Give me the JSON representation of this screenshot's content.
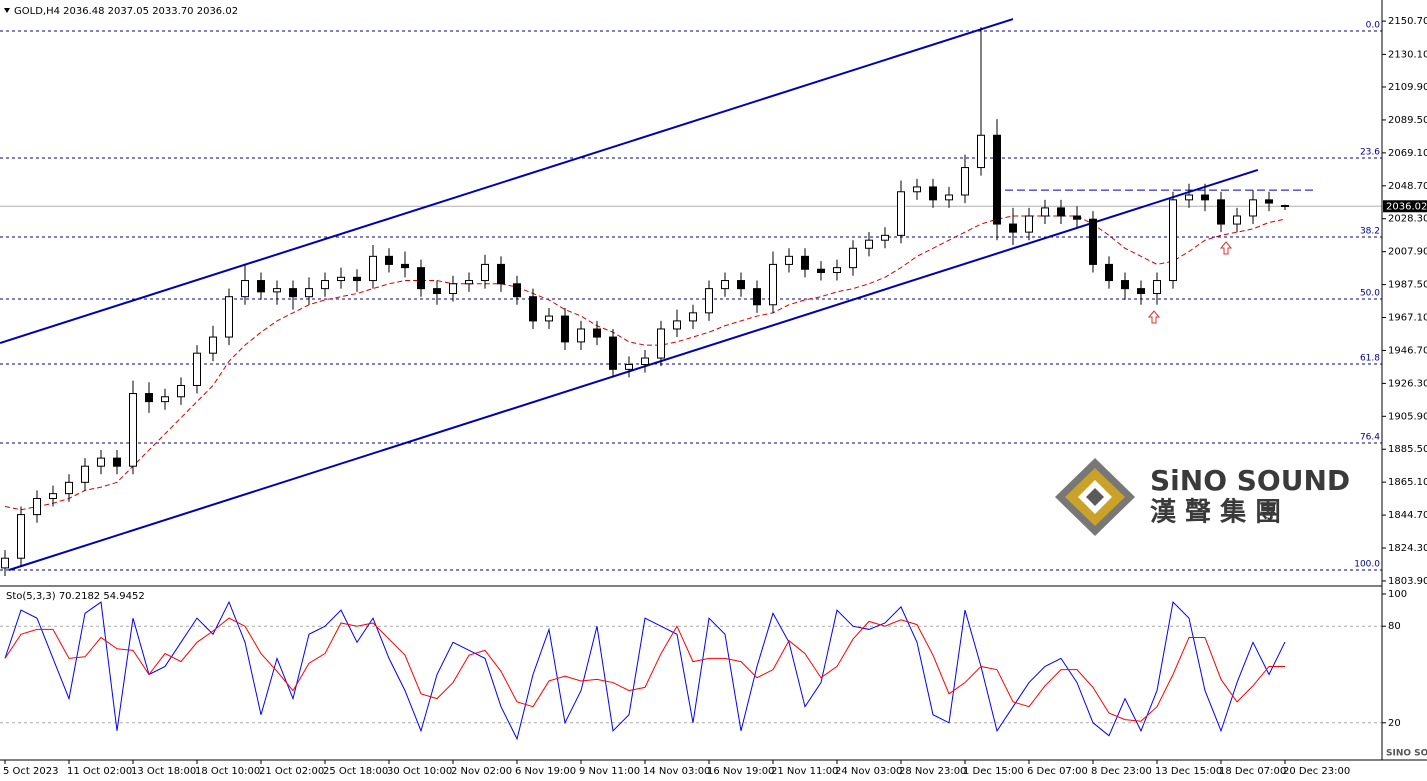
{
  "chart_data": [
    {
      "type": "candlestick",
      "title": "GOLD,H4  2036.48 2037.05 2033.70 2036.02",
      "categories": [
        "5 Oct 2023",
        null,
        null,
        null,
        "11 Oct 02:00",
        null,
        null,
        null,
        "13 Oct 18:00",
        null,
        null,
        null,
        "18 Oct 10:00",
        null,
        null,
        null,
        "21 Oct 02:00",
        null,
        null,
        null,
        "25 Oct 18:00",
        null,
        null,
        null,
        "30 Oct 10:00",
        null,
        null,
        null,
        "2 Nov 02:00",
        null,
        null,
        null,
        "6 Nov 19:00",
        null,
        null,
        null,
        "9 Nov 11:00",
        null,
        null,
        null,
        "14 Nov 03:00",
        null,
        null,
        null,
        "16 Nov 19:00",
        null,
        null,
        null,
        "21 Nov 11:00",
        null,
        null,
        null,
        "24 Nov 03:00",
        null,
        null,
        null,
        "28 Nov 23:00",
        null,
        null,
        null,
        "1 Dec 15:00",
        null,
        null,
        null,
        "6 Dec 07:00",
        null,
        null,
        null,
        "8 Dec 23:00",
        null,
        null,
        null,
        "13 Dec 15:00",
        null,
        null,
        null,
        "18 Dec 07:00",
        null,
        null,
        null,
        "20 Dec 23:00"
      ],
      "open": [
        1812,
        1818,
        1845,
        1855,
        1858,
        1865,
        1875,
        1880,
        1875,
        1920,
        1915,
        1918,
        1925,
        1945,
        1955,
        1980,
        1990,
        1983,
        1985,
        1980,
        1985,
        1990,
        1992,
        1990,
        2005,
        2000,
        1998,
        1985,
        1982,
        1988,
        1990,
        2000,
        1988,
        1980,
        1965,
        1968,
        1952,
        1960,
        1955,
        1935,
        1938,
        1942,
        1960,
        1965,
        1970,
        1985,
        1990,
        1985,
        1975,
        2000,
        2005,
        1997,
        1995,
        1998,
        2010,
        2015,
        2018,
        2045,
        2048,
        2040,
        2043,
        2060,
        2080,
        2025,
        2020,
        2030,
        2035,
        2030,
        2028,
        2000,
        1990,
        1985,
        1982,
        1990,
        2040,
        2043,
        2040,
        2025,
        2030,
        2040,
        2036.48
      ],
      "high": [
        1823,
        1850,
        1860,
        1863,
        1870,
        1880,
        1885,
        1885,
        1928,
        1927,
        1923,
        1930,
        1950,
        1962,
        1985,
        2000,
        1995,
        1990,
        1990,
        1992,
        1995,
        1998,
        1997,
        2012,
        2010,
        2008,
        2003,
        1990,
        1993,
        1995,
        2006,
        2005,
        1993,
        1985,
        1973,
        1973,
        1965,
        1965,
        1960,
        1943,
        1947,
        1965,
        1972,
        1975,
        1990,
        1995,
        1995,
        1990,
        2008,
        2010,
        2010,
        2002,
        2003,
        2015,
        2020,
        2023,
        2052,
        2053,
        2053,
        2048,
        2068,
        2147,
        2090,
        2035,
        2035,
        2040,
        2040,
        2036,
        2033,
        2005,
        1995,
        1990,
        1995,
        2045,
        2050,
        2050,
        2045,
        2035,
        2046,
        2045,
        2037.05
      ],
      "low": [
        1807,
        1813,
        1840,
        1850,
        1853,
        1860,
        1870,
        1870,
        1870,
        1908,
        1910,
        1913,
        1920,
        1940,
        1950,
        1975,
        1978,
        1975,
        1972,
        1975,
        1980,
        1985,
        1983,
        1985,
        1995,
        1992,
        1980,
        1975,
        1977,
        1983,
        1985,
        1983,
        1975,
        1960,
        1960,
        1947,
        1947,
        1950,
        1930,
        1930,
        1933,
        1937,
        1955,
        1960,
        1965,
        1980,
        1980,
        1970,
        1970,
        1995,
        1992,
        1990,
        1990,
        1993,
        2005,
        2010,
        2013,
        2040,
        2035,
        2035,
        2038,
        2055,
        2015,
        2012,
        2015,
        2025,
        2025,
        2023,
        1995,
        1985,
        1978,
        1975,
        1975,
        1985,
        2035,
        2033,
        2020,
        2020,
        2025,
        2033,
        2033.7
      ],
      "close": [
        1818,
        1845,
        1855,
        1858,
        1865,
        1875,
        1880,
        1875,
        1920,
        1915,
        1918,
        1925,
        1945,
        1955,
        1980,
        1990,
        1983,
        1985,
        1980,
        1985,
        1990,
        1992,
        1990,
        2005,
        2000,
        1998,
        1985,
        1982,
        1988,
        1990,
        2000,
        1988,
        1980,
        1965,
        1968,
        1952,
        1960,
        1955,
        1935,
        1938,
        1942,
        1960,
        1965,
        1970,
        1985,
        1990,
        1985,
        1975,
        2000,
        2005,
        1997,
        1995,
        1998,
        2010,
        2015,
        2018,
        2045,
        2048,
        2040,
        2043,
        2060,
        2080,
        2025,
        2020,
        2030,
        2035,
        2030,
        2028,
        2000,
        1990,
        1985,
        1982,
        1990,
        2040,
        2043,
        2040,
        2025,
        2030,
        2040,
        2038,
        2036.02
      ],
      "ylim": [
        1801.4,
        2163.8
      ],
      "yticks": [
        {
          "value": 2150.7,
          "label": "2150.70"
        },
        {
          "value": 2130.1,
          "label": "2130.10"
        },
        {
          "value": 2109.9,
          "label": "2109.90"
        },
        {
          "value": 2089.5,
          "label": "2089.50"
        },
        {
          "value": 2069.1,
          "label": "2069.10"
        },
        {
          "value": 2048.7,
          "label": "2048.70"
        },
        {
          "value": 2028.3,
          "label": "2028.30"
        },
        {
          "value": 2007.9,
          "label": "2007.90"
        },
        {
          "value": 1987.5,
          "label": "1987.50"
        },
        {
          "value": 1967.1,
          "label": "1967.10"
        },
        {
          "value": 1946.7,
          "label": "1946.70"
        },
        {
          "value": 1926.3,
          "label": "1926.30"
        },
        {
          "value": 1905.9,
          "label": "1905.90"
        },
        {
          "value": 1885.5,
          "label": "1885.50"
        },
        {
          "value": 1865.1,
          "label": "1865.10"
        },
        {
          "value": 1844.7,
          "label": "1844.70"
        },
        {
          "value": 1824.3,
          "label": "1824.30"
        },
        {
          "value": 1803.9,
          "label": "1803.90"
        }
      ],
      "current_price": {
        "value": 2036.02,
        "label": "2036.02"
      },
      "fib_levels": [
        {
          "label": "0.0",
          "value": 2144.6
        },
        {
          "label": "23.6",
          "value": 2065.9
        },
        {
          "label": "38.2",
          "value": 2017.0
        },
        {
          "label": "50.0",
          "value": 1978.6
        },
        {
          "label": "61.8",
          "value": 1938.3
        },
        {
          "label": "76.4",
          "value": 1889.4
        },
        {
          "label": "100.0",
          "value": 1810.7
        }
      ],
      "moving_average": {
        "color": "#d40000",
        "values": [
          1850,
          1848,
          1850,
          1852,
          1855,
          1860,
          1862,
          1865,
          1875,
          1885,
          1895,
          1905,
          1915,
          1925,
          1940,
          1950,
          1958,
          1965,
          1970,
          1975,
          1978,
          1980,
          1982,
          1985,
          1988,
          1990,
          1990,
          1990,
          1988,
          1988,
          1988,
          1988,
          1986,
          1982,
          1978,
          1972,
          1968,
          1962,
          1958,
          1952,
          1950,
          1950,
          1952,
          1955,
          1958,
          1962,
          1965,
          1968,
          1970,
          1975,
          1978,
          1980,
          1983,
          1985,
          1988,
          1992,
          1998,
          2005,
          2010,
          2015,
          2020,
          2025,
          2028,
          2030,
          2030,
          2030,
          2030,
          2030,
          2025,
          2018,
          2010,
          2005,
          2000,
          2002,
          2008,
          2015,
          2018,
          2020,
          2022,
          2026,
          2028
        ]
      },
      "trendlines": [
        {
          "x": [
            -0.31,
            63
          ],
          "y": [
            1951.3,
            2152.0
          ],
          "color": "#0000b4",
          "dashed": false
        },
        {
          "x": [
            0.25,
            78.3
          ],
          "y": [
            1810.7,
            2058.5
          ],
          "color": "#0000b4",
          "dashed": false
        },
        {
          "x": [
            61.75,
            81.75
          ],
          "y": [
            2046,
            2046
          ],
          "color": "#0000b4",
          "dashed": true
        }
      ]
    },
    {
      "type": "line",
      "title": "Sto(5,3,3) 70.2182 54.9452",
      "ylim": [
        0,
        100
      ],
      "yticks": [
        20,
        80,
        100
      ],
      "series": [
        {
          "color": "#0000ff",
          "values": [
            60,
            90,
            85,
            60,
            35,
            88,
            95,
            15,
            85,
            50,
            55,
            70,
            85,
            75,
            95,
            70,
            25,
            60,
            35,
            75,
            80,
            90,
            70,
            85,
            60,
            40,
            15,
            50,
            70,
            65,
            60,
            30,
            10,
            50,
            78,
            20,
            40,
            80,
            15,
            25,
            85,
            80,
            75,
            20,
            85,
            75,
            15,
            55,
            88,
            70,
            30,
            45,
            90,
            80,
            78,
            82,
            92,
            70,
            25,
            20,
            90,
            55,
            15,
            30,
            45,
            55,
            60,
            45,
            20,
            12,
            35,
            15,
            40,
            95,
            85,
            40,
            15,
            45,
            70,
            50,
            70.2182
          ]
        },
        {
          "color": "#ff0000",
          "values": [
            60,
            75,
            78,
            78,
            60,
            61,
            73,
            66,
            65,
            50,
            63,
            58,
            70,
            77,
            85,
            80,
            63,
            52,
            40,
            57,
            63,
            82,
            80,
            82,
            72,
            62,
            38,
            35,
            45,
            62,
            65,
            52,
            33,
            30,
            46,
            49,
            46,
            47,
            45,
            40,
            42,
            63,
            80,
            58,
            60,
            60,
            58,
            48,
            53,
            71,
            63,
            48,
            55,
            72,
            83,
            80,
            84,
            81,
            62,
            38,
            45,
            55,
            53,
            33,
            30,
            43,
            53,
            53,
            42,
            26,
            22,
            21,
            30,
            50,
            73,
            73,
            47,
            33,
            43,
            55,
            54.9452
          ]
        }
      ]
    }
  ],
  "logo": {
    "name": "SiNO SOUND",
    "chinese": "漢 聲 集 團",
    "small": "SINO SOUND"
  }
}
